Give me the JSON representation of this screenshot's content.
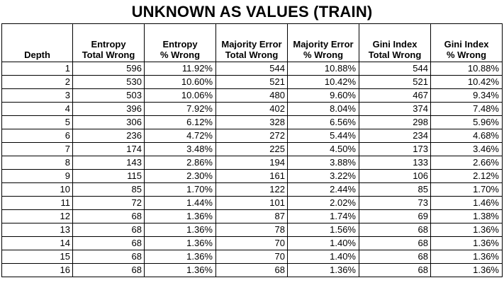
{
  "title": "UNKNOWN AS VALUES (TRAIN)",
  "columns": [
    {
      "line1": "",
      "line2": "Depth"
    },
    {
      "line1": "Entropy",
      "line2": "Total Wrong"
    },
    {
      "line1": "Entropy",
      "line2": "% Wrong"
    },
    {
      "line1": "Majority Error",
      "line2": "Total Wrong"
    },
    {
      "line1": "Majority Error",
      "line2": "% Wrong"
    },
    {
      "line1": "Gini Index",
      "line2": "Total Wrong"
    },
    {
      "line1": "Gini Index",
      "line2": "% Wrong"
    }
  ],
  "rows": [
    [
      "1",
      "596",
      "11.92%",
      "544",
      "10.88%",
      "544",
      "10.88%"
    ],
    [
      "2",
      "530",
      "10.60%",
      "521",
      "10.42%",
      "521",
      "10.42%"
    ],
    [
      "3",
      "503",
      "10.06%",
      "480",
      "9.60%",
      "467",
      "9.34%"
    ],
    [
      "4",
      "396",
      "7.92%",
      "402",
      "8.04%",
      "374",
      "7.48%"
    ],
    [
      "5",
      "306",
      "6.12%",
      "328",
      "6.56%",
      "298",
      "5.96%"
    ],
    [
      "6",
      "236",
      "4.72%",
      "272",
      "5.44%",
      "234",
      "4.68%"
    ],
    [
      "7",
      "174",
      "3.48%",
      "225",
      "4.50%",
      "173",
      "3.46%"
    ],
    [
      "8",
      "143",
      "2.86%",
      "194",
      "3.88%",
      "133",
      "2.66%"
    ],
    [
      "9",
      "115",
      "2.30%",
      "161",
      "3.22%",
      "106",
      "2.12%"
    ],
    [
      "10",
      "85",
      "1.70%",
      "122",
      "2.44%",
      "85",
      "1.70%"
    ],
    [
      "11",
      "72",
      "1.44%",
      "101",
      "2.02%",
      "73",
      "1.46%"
    ],
    [
      "12",
      "68",
      "1.36%",
      "87",
      "1.74%",
      "69",
      "1.38%"
    ],
    [
      "13",
      "68",
      "1.36%",
      "78",
      "1.56%",
      "68",
      "1.36%"
    ],
    [
      "14",
      "68",
      "1.36%",
      "70",
      "1.40%",
      "68",
      "1.36%"
    ],
    [
      "15",
      "68",
      "1.36%",
      "70",
      "1.40%",
      "68",
      "1.36%"
    ],
    [
      "16",
      "68",
      "1.36%",
      "68",
      "1.36%",
      "68",
      "1.36%"
    ]
  ]
}
